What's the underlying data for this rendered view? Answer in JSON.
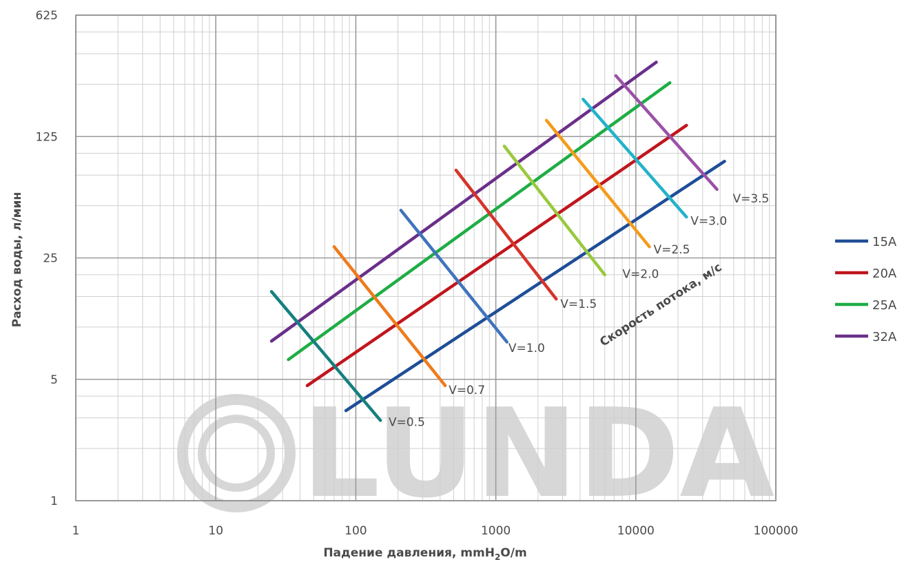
{
  "chart_data": {
    "type": "line",
    "xlabel": "Падение давления, mmH",
    "xlabel_sub": "2",
    "xlabel_tail": "O/m",
    "ylabel": "Расход воды, л/мин",
    "x_scale": "log",
    "y_scale": "log",
    "xlim": [
      1,
      100000
    ],
    "ylim": [
      1,
      625
    ],
    "x_ticks": [
      1,
      10,
      100,
      1000,
      10000,
      100000
    ],
    "x_tick_labels": [
      "1",
      "10",
      "100",
      "1000",
      "10000",
      "100000"
    ],
    "y_ticks": [
      1,
      5,
      25,
      125,
      625
    ],
    "y_tick_labels": [
      "1",
      "5",
      "25",
      "125",
      "625"
    ],
    "grid": true,
    "legend_position": "right",
    "series": [
      {
        "name": "15A",
        "color": "#1f4e96",
        "points": [
          [
            85,
            3.3
          ],
          [
            43000,
            90
          ]
        ]
      },
      {
        "name": "20A",
        "color": "#c0161d",
        "points": [
          [
            45,
            4.6
          ],
          [
            23000,
            145
          ]
        ]
      },
      {
        "name": "25A",
        "color": "#1fad45",
        "points": [
          [
            33,
            6.5
          ],
          [
            17500,
            255
          ]
        ]
      },
      {
        "name": "32A",
        "color": "#6a2f8a",
        "points": [
          [
            25,
            8.3
          ],
          [
            14000,
            335
          ]
        ]
      }
    ],
    "velocity_lines": [
      {
        "label": "V=0.5",
        "color": "#157f7f",
        "points": [
          [
            25,
            16
          ],
          [
            150,
            2.9
          ]
        ],
        "label_at": [
          160,
          2.85
        ]
      },
      {
        "label": "V=0.7",
        "color": "#ef7a1a",
        "points": [
          [
            70,
            29
          ],
          [
            435,
            4.6
          ]
        ],
        "label_at": [
          430,
          4.35
        ]
      },
      {
        "label": "V=1.0",
        "color": "#3f74bd",
        "points": [
          [
            210,
            47
          ],
          [
            1200,
            8.2
          ]
        ],
        "label_at": [
          1150,
          7.6
        ]
      },
      {
        "label": "V=1.5",
        "color": "#d6332a",
        "points": [
          [
            520,
            80
          ],
          [
            2700,
            14.5
          ]
        ],
        "label_at": [
          2700,
          13.6
        ]
      },
      {
        "label": "V=2.0",
        "color": "#98c93c",
        "points": [
          [
            1150,
            110
          ],
          [
            6000,
            20
          ]
        ],
        "label_at": [
          7500,
          20.3
        ]
      },
      {
        "label": "V=2.5",
        "color": "#f59b1a",
        "points": [
          [
            2300,
            155
          ],
          [
            12500,
            29
          ]
        ],
        "label_at": [
          12500,
          28
        ]
      },
      {
        "label": "V=3.0",
        "color": "#22b3c9",
        "points": [
          [
            4200,
            205
          ],
          [
            23000,
            43
          ]
        ],
        "label_at": [
          23000,
          41
        ]
      },
      {
        "label": "V=3.5",
        "color": "#9a52a6",
        "points": [
          [
            7200,
            280
          ],
          [
            38000,
            62
          ]
        ],
        "label_at": [
          46000,
          55
        ]
      }
    ],
    "annotation": "Скорость потока, м/с",
    "watermark": "LUNDA"
  }
}
